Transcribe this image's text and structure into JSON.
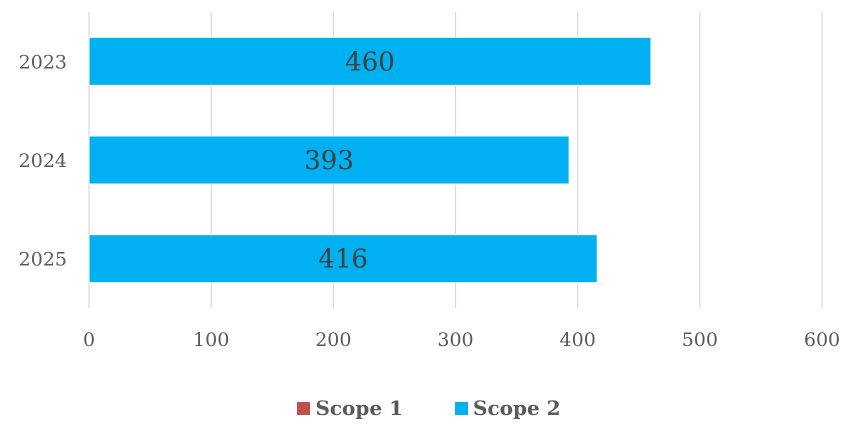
{
  "chart_data": {
    "type": "bar",
    "orientation": "horizontal",
    "categories": [
      "2023",
      "2024",
      "2025"
    ],
    "series": [
      {
        "name": "Scope 1",
        "color": "#C0504D",
        "values": [
          0,
          0,
          0
        ]
      },
      {
        "name": "Scope 2",
        "color": "#00B0F0",
        "values": [
          460,
          393,
          416
        ]
      }
    ],
    "data_labels": [
      "460",
      "393",
      "416"
    ],
    "xlim": [
      0,
      600
    ],
    "x_ticks": [
      "0",
      "100",
      "200",
      "300",
      "400",
      "500",
      "600"
    ],
    "grid": true,
    "legend_position": "bottom",
    "stacked": true
  }
}
